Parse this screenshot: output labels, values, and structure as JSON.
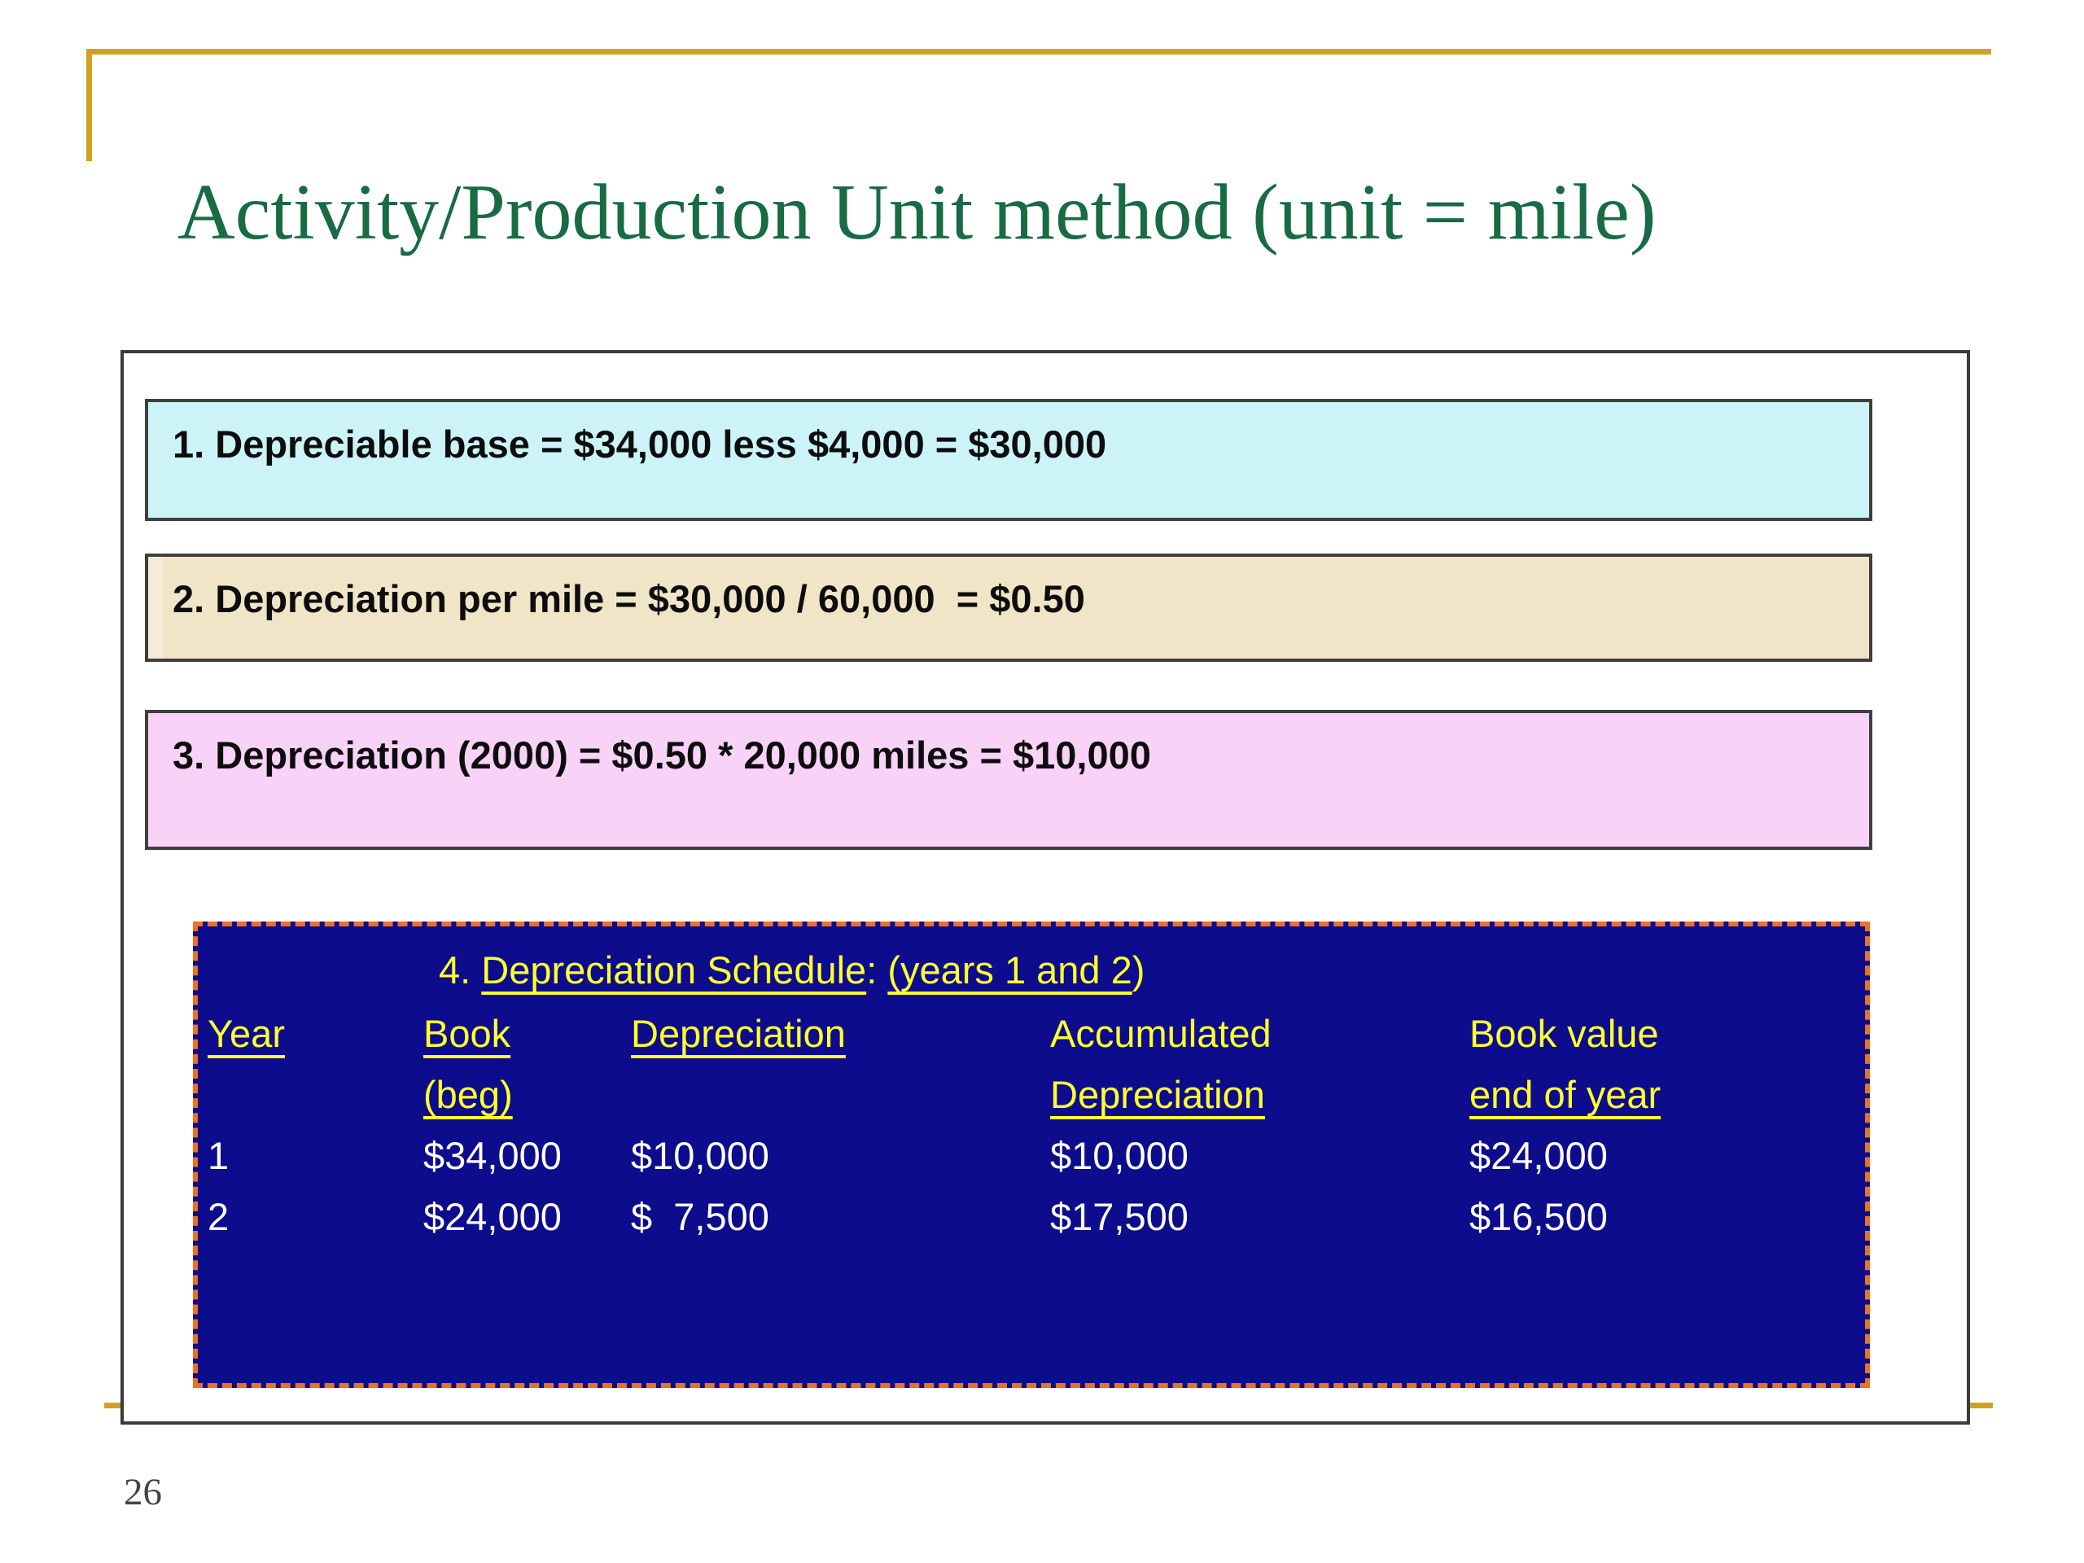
{
  "slide": {
    "title": "Activity/Production Unit method (unit = mile)",
    "page_number": "26"
  },
  "steps": [
    {
      "text": "1. Depreciable base = $34,000 less $4,000 = $30,000"
    },
    {
      "text": "2. Depreciation per mile = $30,000 / 60,000  = $0.50"
    },
    {
      "text": "3. Depreciation (2000) = $0.50 * 20,000 miles = $10,000"
    }
  ],
  "schedule": {
    "heading_parts": {
      "prefix": "4. ",
      "underline1": "Depreciation Schedule",
      "mid": ": ",
      "underline2": "(years 1 and 2",
      "suffix": ")"
    },
    "header_row1": [
      "Year",
      "Book",
      "Depreciation",
      "Accumulated",
      "Book value"
    ],
    "header_row2": [
      "",
      "(beg)",
      "",
      "Depreciation",
      "end of year"
    ],
    "rows": [
      [
        "1",
        "$34,000",
        "$10,000",
        "$10,000",
        "$24,000"
      ],
      [
        "2",
        "$24,000",
        "$  7,500",
        "$17,500",
        "$16,500"
      ]
    ]
  },
  "colors": {
    "title_green": "#186b43",
    "frame_gold": "#d2a21e",
    "step1_bg": "#ccf4f8",
    "step2_bg": "#f1e5c8",
    "step3_bg": "#f9d2f8",
    "schedule_bg": "#0c0c8d",
    "schedule_border": "#ed7023",
    "schedule_header_text": "#ffff2e",
    "schedule_value_text": "#ffffff",
    "box_border": "#3b3b3b"
  }
}
